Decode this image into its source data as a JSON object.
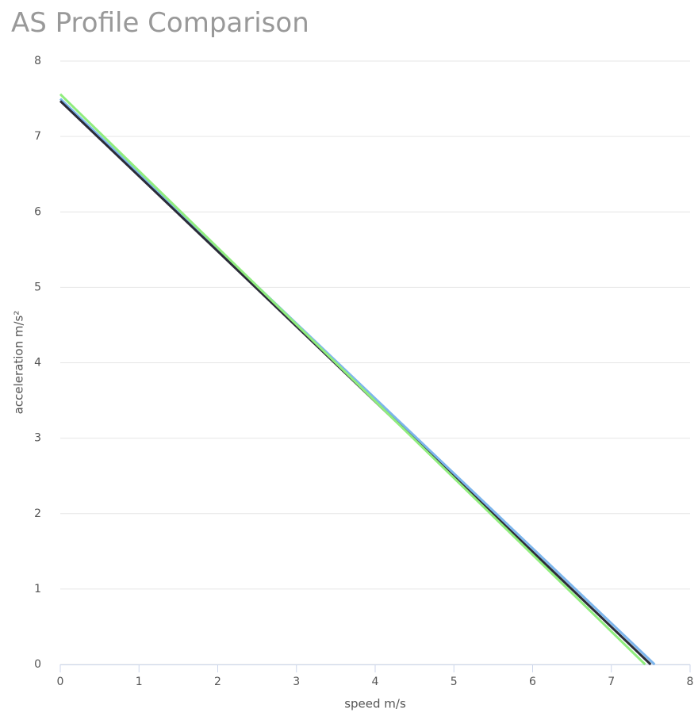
{
  "chart_data": {
    "type": "line",
    "title": "AS Profile Comparison",
    "xlabel": "speed m/s",
    "ylabel": "acceleration m/s²",
    "xlim": [
      0,
      8
    ],
    "xticks": [
      0,
      1,
      2,
      3,
      4,
      5,
      6,
      7,
      8
    ],
    "ylim": [
      0,
      8
    ],
    "yticks": [
      0,
      1,
      2,
      3,
      4,
      5,
      6,
      7,
      8
    ],
    "grid": true,
    "series": [
      {
        "color": "#7cb5ec",
        "x": [
          0,
          7.55
        ],
        "values": [
          7.5,
          0
        ]
      },
      {
        "color": "#2b2b38",
        "x": [
          0,
          7.5
        ],
        "values": [
          7.47,
          0
        ]
      },
      {
        "color": "#90ed7d",
        "x": [
          0,
          7.43
        ],
        "values": [
          7.56,
          0
        ]
      }
    ]
  }
}
